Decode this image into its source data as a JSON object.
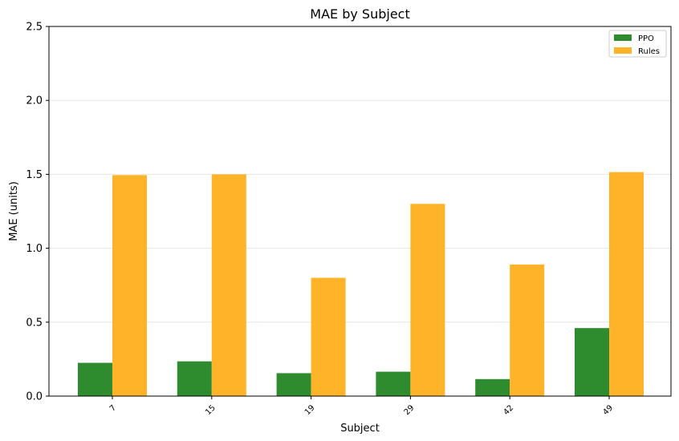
{
  "chart_data": {
    "type": "bar",
    "title": "MAE by Subject",
    "xlabel": "Subject",
    "ylabel": "MAE (units)",
    "categories": [
      "7",
      "15",
      "19",
      "29",
      "42",
      "49"
    ],
    "series": [
      {
        "name": "PPO",
        "values": [
          0.225,
          0.235,
          0.155,
          0.165,
          0.115,
          0.46
        ],
        "color": "#2e8b2e"
      },
      {
        "name": "Rules",
        "values": [
          1.495,
          1.5,
          0.8,
          1.3,
          0.89,
          1.515
        ],
        "color": "#ffb329"
      }
    ],
    "ylim": [
      0,
      2.5
    ],
    "yticks": [
      "0.0",
      "0.5",
      "1.0",
      "1.5",
      "2.0",
      "2.5"
    ],
    "grid": "horizontal",
    "legend_position": "top-right"
  }
}
